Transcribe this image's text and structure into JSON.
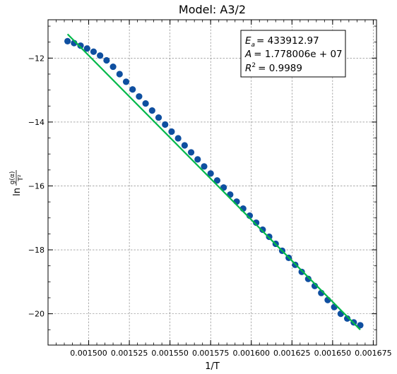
{
  "chart_data": {
    "type": "scatter",
    "title": "Model: A3/2",
    "xlabel": "1/T",
    "ylabel": {
      "prefix": "ln",
      "numerator": "g(α)",
      "denominator": "T²"
    },
    "xlim": [
      0.001475,
      0.001677
    ],
    "ylim": [
      -20.98,
      -10.8
    ],
    "xticks": [
      0.0015,
      0.001525,
      0.00155,
      0.001575,
      0.0016,
      0.001625,
      0.00165,
      0.001675
    ],
    "xtick_labels": [
      "0.001500",
      "0.001525",
      "0.001550",
      "0.001575",
      "0.001600",
      "0.001625",
      "0.001650",
      "0.001675"
    ],
    "yticks": [
      -20,
      -18,
      -16,
      -14,
      -12
    ],
    "ytick_labels": [
      "−20",
      "−18",
      "−16",
      "−14",
      "−12"
    ],
    "grid": true,
    "colors": {
      "points": "#0f4fa0",
      "fit": "#00b84a"
    },
    "annotation": {
      "placement": "top-right",
      "lines": [
        {
          "name": "E",
          "sub": "a",
          "sup": "",
          "value": "= 433912.97"
        },
        {
          "name": "A",
          "sub": "",
          "sup": "",
          "value": "= 1.778006e + 07"
        },
        {
          "name": "R",
          "sub": "",
          "sup": "2",
          "value": "= 0.9989"
        }
      ]
    },
    "series": [
      {
        "name": "",
        "kind": "scatter",
        "x": [
          0.001487,
          0.001491,
          0.001495,
          0.001499,
          0.001503,
          0.001507,
          0.001511,
          0.001515,
          0.001519,
          0.001523,
          0.001527,
          0.001531,
          0.001535,
          0.001539,
          0.001543,
          0.001547,
          0.001551,
          0.001555,
          0.001559,
          0.001563,
          0.001567,
          0.001571,
          0.001575,
          0.001579,
          0.001583,
          0.001587,
          0.001591,
          0.001595,
          0.001599,
          0.001603,
          0.001607,
          0.001611,
          0.001615,
          0.001619,
          0.001623,
          0.001627,
          0.001631,
          0.001635,
          0.001639,
          0.001643,
          0.001647,
          0.001651,
          0.001655,
          0.001659,
          0.001663,
          0.001667
        ],
        "y": [
          -11.47,
          -11.53,
          -11.61,
          -11.7,
          -11.8,
          -11.92,
          -12.07,
          -12.27,
          -12.5,
          -12.74,
          -12.98,
          -13.2,
          -13.42,
          -13.64,
          -13.86,
          -14.08,
          -14.3,
          -14.51,
          -14.73,
          -14.95,
          -15.17,
          -15.39,
          -15.61,
          -15.83,
          -16.05,
          -16.27,
          -16.49,
          -16.71,
          -16.93,
          -17.15,
          -17.37,
          -17.59,
          -17.81,
          -18.03,
          -18.25,
          -18.47,
          -18.69,
          -18.91,
          -19.13,
          -19.35,
          -19.57,
          -19.79,
          -20.0,
          -20.15,
          -20.27,
          -20.36
        ]
      },
      {
        "name": "",
        "kind": "line",
        "x": [
          0.001487,
          0.001667
        ],
        "y": [
          -11.25,
          -20.5
        ]
      }
    ]
  }
}
